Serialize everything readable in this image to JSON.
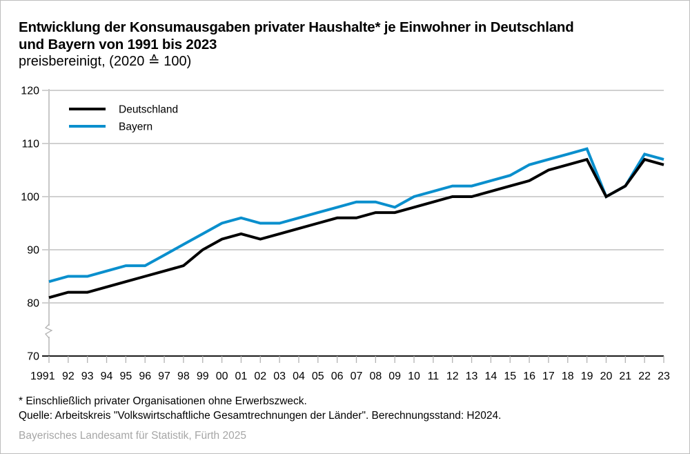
{
  "header": {
    "title_line1": "Entwicklung der Konsumausgaben privater Haushalte* je Einwohner in Deutschland",
    "title_line2": "und Bayern von 1991 bis 2023",
    "subtitle": "preisbereinigt, (2020 ≙ 100)"
  },
  "footer": {
    "footnote": "* Einschließlich privater Organisationen ohne Erwerbszweck.",
    "source": "Quelle: Arbeitskreis \"Volkswirtschaftliche Gesamtrechnungen der Länder\". Berechnungsstand: H2024.",
    "credit": "Bayerisches Landesamt für Statistik, Fürth 2025"
  },
  "chart_data": {
    "type": "line",
    "title": "Entwicklung der Konsumausgaben privater Haushalte* je Einwohner in Deutschland und Bayern von 1991 bis 2023",
    "subtitle": "preisbereinigt, (2020 ≙ 100)",
    "xlabel": "",
    "ylabel": "",
    "x": [
      1991,
      1992,
      1993,
      1994,
      1995,
      1996,
      1997,
      1998,
      1999,
      2000,
      2001,
      2002,
      2003,
      2004,
      2005,
      2006,
      2007,
      2008,
      2009,
      2010,
      2011,
      2012,
      2013,
      2014,
      2015,
      2016,
      2017,
      2018,
      2019,
      2020,
      2021,
      2022,
      2023
    ],
    "x_tick_labels": [
      "1991",
      "92",
      "93",
      "94",
      "95",
      "96",
      "97",
      "98",
      "99",
      "00",
      "01",
      "02",
      "03",
      "04",
      "05",
      "06",
      "07",
      "08",
      "09",
      "10",
      "11",
      "12",
      "13",
      "14",
      "15",
      "16",
      "17",
      "18",
      "19",
      "20",
      "21",
      "22",
      "23"
    ],
    "ylim": [
      70,
      120
    ],
    "y_ticks": [
      70,
      80,
      90,
      100,
      110,
      120
    ],
    "y_tick_labels": [
      "70",
      "80",
      "90",
      "100",
      "110",
      "120"
    ],
    "axis_break": "between 70 and 80",
    "grid": true,
    "legend_position": "top-left",
    "series": [
      {
        "name": "Deutschland",
        "color": "#000000",
        "values": [
          81,
          82,
          82,
          83,
          84,
          85,
          86,
          87,
          90,
          92,
          93,
          92,
          93,
          94,
          95,
          96,
          96,
          97,
          97,
          98,
          99,
          100,
          100,
          101,
          102,
          103,
          105,
          106,
          107,
          100,
          102,
          107,
          106
        ]
      },
      {
        "name": "Bayern",
        "color": "#0a8fcd",
        "values": [
          84,
          85,
          85,
          86,
          87,
          87,
          89,
          91,
          93,
          95,
          96,
          95,
          95,
          96,
          97,
          98,
          99,
          99,
          98,
          100,
          101,
          102,
          102,
          103,
          104,
          106,
          107,
          108,
          109,
          100,
          102,
          108,
          107
        ]
      }
    ]
  }
}
